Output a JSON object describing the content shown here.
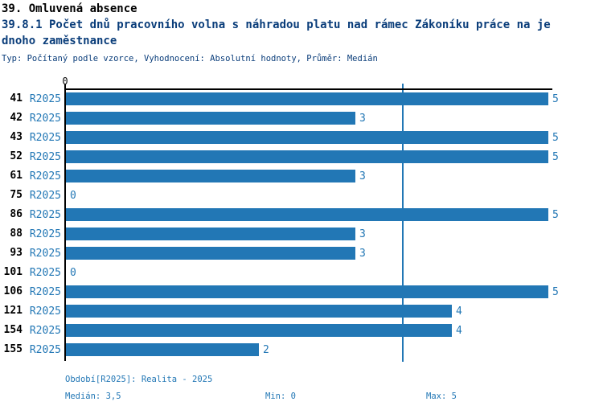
{
  "header": {
    "title": "39. Omluvená absence",
    "subtitle_line1": "39.8.1 Počet dnů pracovního volna s náhradou platu nad rámec Zákoníku práce na je",
    "subtitle_line2": "dnoho zaměstnance",
    "meta": "Typ: Počítaný podle vzorce, Vyhodnocení: Absolutní hodnoty, Průměr: Medián"
  },
  "chart_data": {
    "type": "bar",
    "orientation": "horizontal",
    "title": "39.8.1 Počet dnů pracovního volna s náhradou platu nad rámec Zákoníku práce na jednoho zaměstnance",
    "categories": [
      "41",
      "42",
      "43",
      "52",
      "61",
      "75",
      "86",
      "88",
      "93",
      "101",
      "106",
      "121",
      "154",
      "155"
    ],
    "series": [
      {
        "name": "R2025",
        "values": [
          5,
          3,
          5,
          5,
          3,
          0,
          5,
          3,
          3,
          0,
          5,
          4,
          4,
          2
        ]
      }
    ],
    "value_labels": [
      "5",
      "3",
      "5",
      "5",
      "3",
      "0",
      "5",
      "3",
      "3",
      "0",
      "5",
      "4",
      "4",
      "2"
    ],
    "xlim": [
      0,
      5
    ],
    "x_axis_tick_labels": [
      "0"
    ],
    "median_line_x": 3.5,
    "grid": false,
    "legend_position": "none"
  },
  "footer": {
    "period": "Období[R2025]: Realita - 2025",
    "median": "Medián: 3,5",
    "min": "Min: 0",
    "max": "Max: 5"
  },
  "colors": {
    "accent": "#2277b5",
    "bar": "#2277b5",
    "title": "#000000",
    "subtitle": "#0a3d7a",
    "axis": "#000000",
    "background": "#ffffff"
  }
}
